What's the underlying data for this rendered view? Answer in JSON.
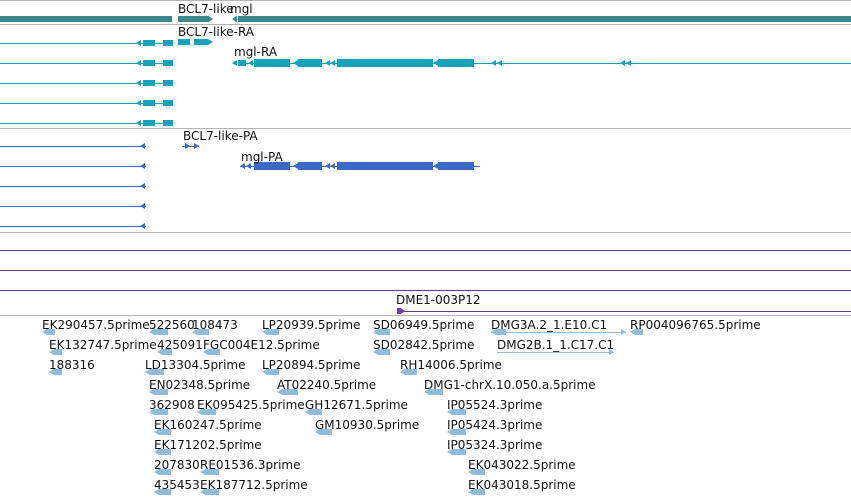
{
  "colors": {
    "gene": "#3a8a8c",
    "transcript_rna": "#16a2b8",
    "transcript_protein": "#3b6ac4",
    "track_divider": "#b4b4b4",
    "feature_line": "#5d3a80",
    "clone": "#6a3fa8",
    "est": "#8fbcd9",
    "label_text": "#111111"
  },
  "tracks": {
    "genes": {
      "labels": [
        "BCL7-like",
        "mgl"
      ]
    },
    "transcripts": {
      "labels": [
        "BCL7-like-RA",
        "mgl-RA"
      ]
    },
    "proteins": {
      "labels": [
        "BCL7-like-PA",
        "mgl-PA"
      ]
    },
    "clones": {
      "labels": [
        "DME1-003P12"
      ]
    },
    "ests": {
      "labels": [
        "EK290457.5prime",
        "522560",
        "108473",
        "LP20939.5prime",
        "SD06949.5prime",
        "DMG3A.2_1.E10.C1",
        "RP004096765.5prime",
        "EK132747.5prime",
        "425091",
        "FGC004E12.5prime",
        "SD02842.5prime",
        "DMG2B.1_1.C17.C1",
        "188316",
        "LD13304.5prime",
        "LP20894.5prime",
        "RH14006.5prime",
        "EN02348.5prime",
        "AT02240.5prime",
        "DMG1-chrX.10.050.a.5prime",
        "362908",
        "EK095425.5prime",
        "GH12671.5prime",
        "IP05524.3prime",
        "EK160247.5prime",
        "GM10930.5prime",
        "IP05424.3prime",
        "EK171202.5prime",
        "IP05324.3prime",
        "207830",
        "RE01536.3prime",
        "EK043022.5prime",
        "435453",
        "EK187712.5prime",
        "EK043018.5prime"
      ]
    }
  }
}
